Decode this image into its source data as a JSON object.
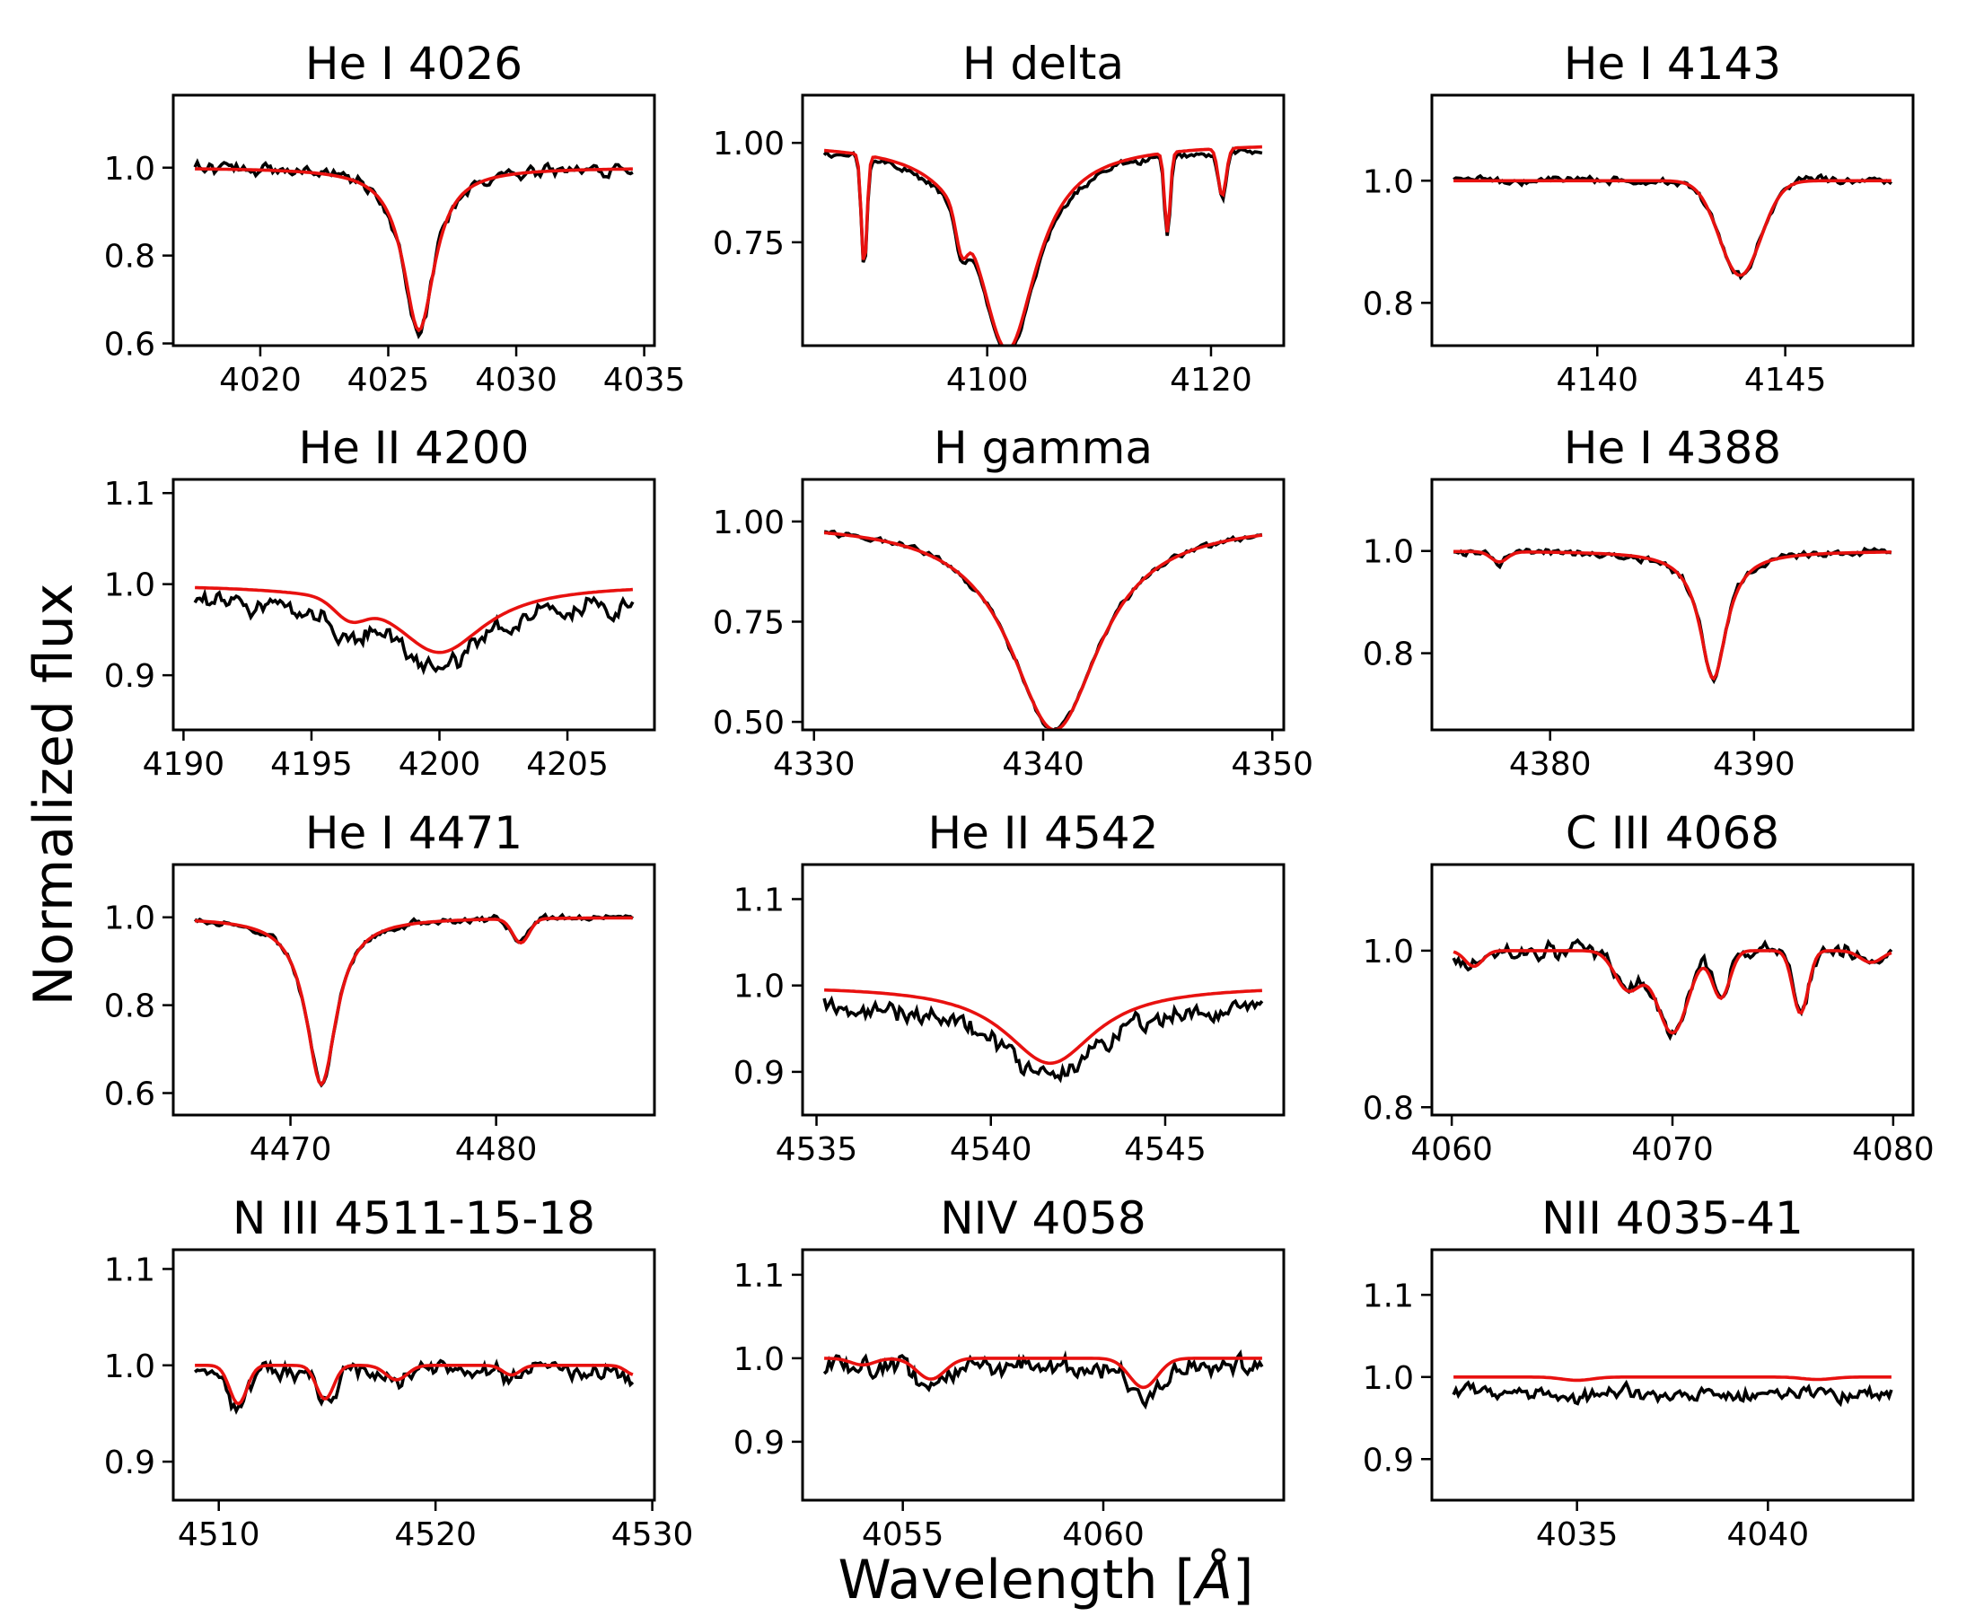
{
  "figure": {
    "ylabel": "Normalized flux",
    "xlabel": "Wavelength [Å]",
    "xlabel_main": "Wavelength [",
    "xlabel_unit": "Å",
    "xlabel_end": "]",
    "model_color": "#e8110f",
    "observed_color": "#000000"
  },
  "chart_data": [
    {
      "type": "line",
      "title": "He I 4026",
      "xlim": [
        4016.6,
        4035.4
      ],
      "ylim": [
        0.595,
        1.165
      ],
      "xticks": [
        4020,
        4025,
        4030,
        4035
      ],
      "xtick_labels": [
        "4020",
        "4025",
        "4030",
        "4035"
      ],
      "yticks": [
        0.6,
        0.8,
        1.0
      ],
      "ytick_labels": [
        "0.6",
        "0.8",
        "1.0"
      ],
      "lines": [
        {
          "center": 4026.2,
          "depth": 0.37,
          "width": 0.75,
          "shape": "lorentz"
        }
      ],
      "obs_noise": 0.022,
      "obs_offset": 0.0,
      "seed": 1
    },
    {
      "type": "line",
      "title": "H delta",
      "xlim": [
        4083.5,
        4126.5
      ],
      "ylim": [
        0.49,
        1.12
      ],
      "xticks": [
        4100,
        4120
      ],
      "xtick_labels": [
        "4100",
        "4120"
      ],
      "yticks": [
        0.75,
        1.0
      ],
      "ytick_labels": [
        "0.75",
        "1.00"
      ],
      "lines": [
        {
          "center": 4101.8,
          "depth": 0.52,
          "width": 3.2,
          "shape": "lorentz"
        },
        {
          "center": 4089.0,
          "depth": 0.28,
          "width": 0.25,
          "shape": "gauss"
        },
        {
          "center": 4097.7,
          "depth": 0.09,
          "width": 0.5,
          "shape": "gauss"
        },
        {
          "center": 4116.1,
          "depth": 0.2,
          "width": 0.25,
          "shape": "gauss"
        },
        {
          "center": 4121.0,
          "depth": 0.12,
          "width": 0.35,
          "shape": "gauss"
        }
      ],
      "obs_noise": 0.014,
      "obs_offset": -0.01,
      "seed": 2
    },
    {
      "type": "line",
      "title": "He I 4143",
      "xlim": [
        4135.6,
        4148.4
      ],
      "ylim": [
        0.73,
        1.14
      ],
      "xticks": [
        4140,
        4145
      ],
      "xtick_labels": [
        "4140",
        "4145"
      ],
      "yticks": [
        0.8,
        1.0
      ],
      "ytick_labels": [
        "0.8",
        "1.0"
      ],
      "lines": [
        {
          "center": 4143.8,
          "depth": 0.155,
          "width": 0.55,
          "shape": "gauss"
        }
      ],
      "obs_noise": 0.01,
      "obs_offset": 0.0,
      "seed": 3
    },
    {
      "type": "line",
      "title": "He II 4200",
      "xlim": [
        4189.6,
        4208.4
      ],
      "ylim": [
        0.84,
        1.115
      ],
      "xticks": [
        4190,
        4195,
        4200,
        4205
      ],
      "xtick_labels": [
        "4190",
        "4195",
        "4200",
        "4205"
      ],
      "yticks": [
        0.9,
        1.0,
        1.1
      ],
      "ytick_labels": [
        "0.9",
        "1.0",
        "1.1"
      ],
      "lines": [
        {
          "center": 4200.0,
          "depth": 0.075,
          "width": 2.2,
          "shape": "lorentz"
        },
        {
          "center": 4196.5,
          "depth": 0.02,
          "width": 0.6,
          "shape": "gauss"
        }
      ],
      "obs_noise": 0.018,
      "obs_offset": -0.015,
      "seed": 4
    },
    {
      "type": "line",
      "title": "H gamma",
      "xlim": [
        4329.5,
        4350.5
      ],
      "ylim": [
        0.48,
        1.105
      ],
      "xticks": [
        4330,
        4340,
        4350
      ],
      "xtick_labels": [
        "4330",
        "4340",
        "4350"
      ],
      "yticks": [
        0.5,
        0.75,
        1.0
      ],
      "ytick_labels": [
        "0.50",
        "0.75",
        "1.00"
      ],
      "lines": [
        {
          "center": 4340.5,
          "depth": 0.52,
          "width": 2.4,
          "shape": "lorentz"
        }
      ],
      "obs_noise": 0.012,
      "obs_offset": 0.0,
      "seed": 5
    },
    {
      "type": "line",
      "title": "He I 4388",
      "xlim": [
        4374.2,
        4397.8
      ],
      "ylim": [
        0.65,
        1.14
      ],
      "xticks": [
        4380,
        4390
      ],
      "xtick_labels": [
        "4380",
        "4390"
      ],
      "yticks": [
        0.8,
        1.0
      ],
      "ytick_labels": [
        "0.8",
        "1.0"
      ],
      "lines": [
        {
          "center": 4388.0,
          "depth": 0.25,
          "width": 0.8,
          "shape": "lorentz"
        },
        {
          "center": 4377.5,
          "depth": 0.02,
          "width": 0.4,
          "shape": "gauss"
        }
      ],
      "obs_noise": 0.012,
      "obs_offset": 0.0,
      "seed": 6
    },
    {
      "type": "line",
      "title": "He I 4471",
      "xlim": [
        4464.3,
        4487.7
      ],
      "ylim": [
        0.55,
        1.12
      ],
      "xticks": [
        4470,
        4480
      ],
      "xtick_labels": [
        "4470",
        "4480"
      ],
      "yticks": [
        0.6,
        0.8,
        1.0
      ],
      "ytick_labels": [
        "0.6",
        "0.8",
        "1.0"
      ],
      "lines": [
        {
          "center": 4471.5,
          "depth": 0.38,
          "width": 0.9,
          "shape": "lorentz"
        },
        {
          "center": 4481.2,
          "depth": 0.055,
          "width": 0.4,
          "shape": "gauss"
        }
      ],
      "obs_noise": 0.012,
      "obs_offset": 0.0,
      "seed": 7
    },
    {
      "type": "line",
      "title": "He II 4542",
      "xlim": [
        4534.6,
        4548.4
      ],
      "ylim": [
        0.85,
        1.14
      ],
      "xticks": [
        4535,
        4540,
        4545
      ],
      "xtick_labels": [
        "4535",
        "4540",
        "4545"
      ],
      "yticks": [
        0.9,
        1.0,
        1.1
      ],
      "ytick_labels": [
        "0.9",
        "1.0",
        "1.1"
      ],
      "lines": [
        {
          "center": 4541.7,
          "depth": 0.09,
          "width": 1.6,
          "shape": "lorentz"
        }
      ],
      "obs_noise": 0.018,
      "obs_offset": -0.02,
      "seed": 8
    },
    {
      "type": "line",
      "title": "C III 4068",
      "xlim": [
        4059.1,
        4080.9
      ],
      "ylim": [
        0.79,
        1.11
      ],
      "xticks": [
        4060,
        4070,
        4080
      ],
      "xtick_labels": [
        "4060",
        "4070",
        "4080"
      ],
      "yticks": [
        0.8,
        1.0
      ],
      "ytick_labels": [
        "0.8",
        "1.0"
      ],
      "lines": [
        {
          "center": 4070.0,
          "depth": 0.105,
          "width": 0.7,
          "shape": "gauss"
        },
        {
          "center": 4068.0,
          "depth": 0.05,
          "width": 0.6,
          "shape": "gauss"
        },
        {
          "center": 4072.2,
          "depth": 0.06,
          "width": 0.4,
          "shape": "gauss"
        },
        {
          "center": 4075.8,
          "depth": 0.08,
          "width": 0.35,
          "shape": "gauss"
        },
        {
          "center": 4061.0,
          "depth": 0.02,
          "width": 0.4,
          "shape": "gauss"
        },
        {
          "center": 4079.0,
          "depth": 0.015,
          "width": 0.5,
          "shape": "gauss"
        }
      ],
      "obs_noise": 0.018,
      "obs_offset": 0.0,
      "seed": 9
    },
    {
      "type": "line",
      "title": "N III 4511-15-18",
      "xlim": [
        4507.9,
        4530.1
      ],
      "ylim": [
        0.86,
        1.12
      ],
      "xticks": [
        4510,
        4520,
        4530
      ],
      "xtick_labels": [
        "4510",
        "4520",
        "4530"
      ],
      "yticks": [
        0.9,
        1.0,
        1.1
      ],
      "ytick_labels": [
        "0.9",
        "1.0",
        "1.1"
      ],
      "lines": [
        {
          "center": 4510.9,
          "depth": 0.04,
          "width": 0.4,
          "shape": "gauss"
        },
        {
          "center": 4514.9,
          "depth": 0.035,
          "width": 0.4,
          "shape": "gauss"
        },
        {
          "center": 4518.2,
          "depth": 0.015,
          "width": 0.5,
          "shape": "gauss"
        },
        {
          "center": 4523.5,
          "depth": 0.01,
          "width": 0.4,
          "shape": "gauss"
        },
        {
          "center": 4529.2,
          "depth": 0.01,
          "width": 0.4,
          "shape": "gauss"
        }
      ],
      "obs_noise": 0.015,
      "obs_offset": -0.005,
      "seed": 10
    },
    {
      "type": "line",
      "title": "NIV 4058",
      "xlim": [
        4052.5,
        4064.5
      ],
      "ylim": [
        0.83,
        1.13
      ],
      "xticks": [
        4055,
        4060
      ],
      "xtick_labels": [
        "4055",
        "4060"
      ],
      "yticks": [
        0.9,
        1.0,
        1.1
      ],
      "ytick_labels": [
        "0.9",
        "1.0",
        "1.1"
      ],
      "lines": [
        {
          "center": 4061.0,
          "depth": 0.035,
          "width": 0.35,
          "shape": "gauss"
        },
        {
          "center": 4055.7,
          "depth": 0.025,
          "width": 0.35,
          "shape": "gauss"
        },
        {
          "center": 4054.0,
          "depth": 0.008,
          "width": 0.3,
          "shape": "gauss"
        }
      ],
      "obs_noise": 0.02,
      "obs_offset": -0.01,
      "seed": 11
    },
    {
      "type": "line",
      "title": "NII 4035-41",
      "xlim": [
        4031.2,
        4043.8
      ],
      "ylim": [
        0.85,
        1.155
      ],
      "xticks": [
        4035,
        4040
      ],
      "xtick_labels": [
        "4035",
        "4040"
      ],
      "yticks": [
        0.9,
        1.0,
        1.1
      ],
      "ytick_labels": [
        "0.9",
        "1.0",
        "1.1"
      ],
      "lines": [
        {
          "center": 4035.0,
          "depth": 0.004,
          "width": 0.4,
          "shape": "gauss"
        },
        {
          "center": 4041.3,
          "depth": 0.003,
          "width": 0.4,
          "shape": "gauss"
        }
      ],
      "obs_noise": 0.015,
      "obs_offset": -0.02,
      "seed": 12
    }
  ]
}
